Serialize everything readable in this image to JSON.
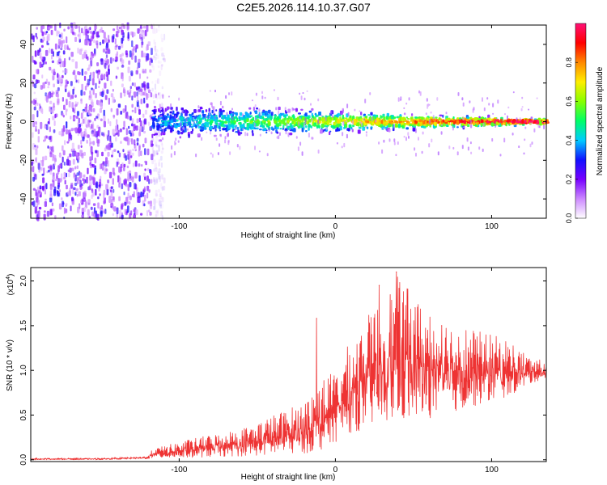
{
  "title": "C2E5.2026.114.10.37.G07",
  "chart_data": [
    {
      "type": "heatmap",
      "title": "C2E5.2026.114.10.37.G07",
      "xlabel": "Height of straight line (km)",
      "ylabel": "Frequency (Hz)",
      "xlim": [
        -195,
        135
      ],
      "ylim": [
        -50,
        50
      ],
      "xticks": [
        "-100",
        "0",
        "100"
      ],
      "xtick_values": [
        -100,
        0,
        100
      ],
      "yticks": [
        "-40",
        "-20",
        "0",
        "20",
        "40"
      ],
      "ytick_values": [
        -40,
        -20,
        0,
        20,
        40
      ],
      "colorbar": {
        "label": "Normalized spectral amplitude",
        "range": [
          0,
          1
        ],
        "ticks": [
          "0.0",
          "0.2",
          "0.4",
          "0.6",
          "0.8"
        ],
        "tick_values": [
          0.0,
          0.2,
          0.4,
          0.6,
          0.8
        ],
        "colors": [
          "#ffffff",
          "#cc88ff",
          "#7700ff",
          "#1111ff",
          "#00ccff",
          "#00ff66",
          "#88ff00",
          "#ffee00",
          "#ff8800",
          "#ff0000",
          "#ff1177"
        ]
      },
      "description_regions": [
        {
          "x_range": [
            -195,
            -118
          ],
          "note": "broadband noise"
        },
        {
          "x_range": [
            -118,
            135
          ],
          "center_freq": 0,
          "note": "narrowing signal band"
        }
      ]
    },
    {
      "type": "line",
      "xlabel": "Height of straight line (km)",
      "ylabel": "SNR (10 * v/v)",
      "scale_label": "(x10",
      "scale_exponent": "4",
      "series_color": "#ee3333",
      "xlim": [
        -195,
        135
      ],
      "ylim": [
        -0.02,
        2.15
      ],
      "xticks": [
        "-100",
        "0",
        "100"
      ],
      "xtick_values": [
        -100,
        0,
        100
      ],
      "yticks": [
        "0.0",
        "0.5",
        "1.0",
        "1.5",
        "2.0"
      ],
      "ytick_values": [
        0.0,
        0.5,
        1.0,
        1.5,
        2.0
      ],
      "envelope": {
        "x": [
          -195,
          -150,
          -120,
          -117,
          -100,
          -80,
          -60,
          -40,
          -20,
          -10,
          0,
          10,
          20,
          30,
          40,
          55,
          70,
          90,
          110,
          125,
          135
        ],
        "low": [
          0.0,
          0.0,
          0.01,
          0.02,
          0.02,
          0.03,
          0.04,
          0.05,
          0.07,
          0.1,
          0.2,
          0.3,
          0.35,
          0.4,
          0.4,
          0.45,
          0.5,
          0.6,
          0.7,
          0.85,
          0.92
        ],
        "high": [
          0.02,
          0.02,
          0.04,
          0.12,
          0.2,
          0.28,
          0.35,
          0.5,
          0.65,
          0.9,
          1.0,
          1.35,
          1.6,
          1.8,
          2.05,
          1.75,
          1.6,
          1.45,
          1.35,
          1.15,
          1.1
        ]
      },
      "peaks": [
        {
          "x": -12,
          "y": 1.58
        },
        {
          "x": 28,
          "y": 1.95
        },
        {
          "x": 39,
          "y": 2.1
        },
        {
          "x": 51,
          "y": 1.7
        },
        {
          "x": 68,
          "y": 1.5
        }
      ]
    }
  ]
}
